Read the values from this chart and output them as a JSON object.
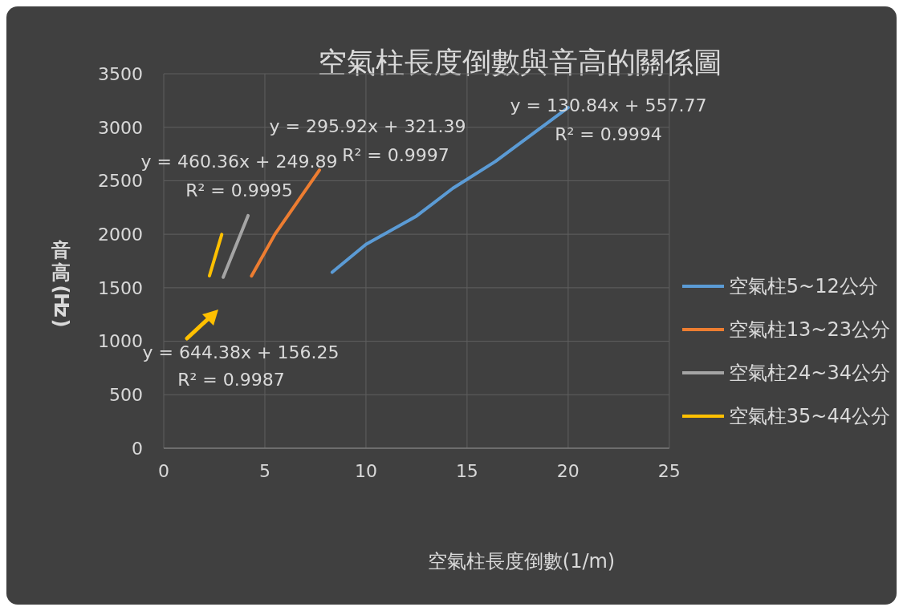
{
  "chart_data": {
    "type": "line",
    "title": "空氣柱長度倒數與音高的關係圖",
    "xlabel": "空氣柱長度倒數(1/m)",
    "ylabel": "音高(Hz)",
    "series": [
      {
        "name": "空氣柱5~12公分",
        "color": "#5b9bd5",
        "x": [
          8.33,
          10,
          12.5,
          14.3,
          16.4,
          20
        ],
        "values": [
          1645,
          1905,
          2170,
          2430,
          2680,
          3185
        ]
      },
      {
        "name": "空氣柱13~23公分",
        "color": "#ed7d31",
        "x": [
          4.34,
          5.5,
          7.7
        ],
        "values": [
          1610,
          2000,
          2600
        ]
      },
      {
        "name": "空氣柱24~34公分",
        "color": "#a5a5a5",
        "x": [
          2.94,
          4.17
        ],
        "values": [
          1598,
          2174
        ]
      },
      {
        "name": "空氣柱35~44公分",
        "color": "#ffc000",
        "x": [
          2.26,
          2.87
        ],
        "values": [
          1611,
          1998
        ]
      }
    ],
    "annotations": [
      "y = 130.84x + 557.77",
      "R² = 0.9994",
      "y = 295.92x + 321.39",
      "R² = 0.9997",
      "y = 460.36x + 249.89",
      "R² = 0.9995",
      "y = 644.38x + 156.25",
      "R² = 0.9987"
    ],
    "xlim": [
      0,
      25
    ],
    "xticks": [
      0,
      5,
      10,
      15,
      20,
      25
    ],
    "ylim": [
      0,
      3500
    ],
    "yticks": [
      0,
      500,
      1000,
      1500,
      2000,
      2500,
      3000,
      3500
    ],
    "grid": true,
    "legend": "right",
    "marker": "none",
    "line_style": "solid"
  }
}
